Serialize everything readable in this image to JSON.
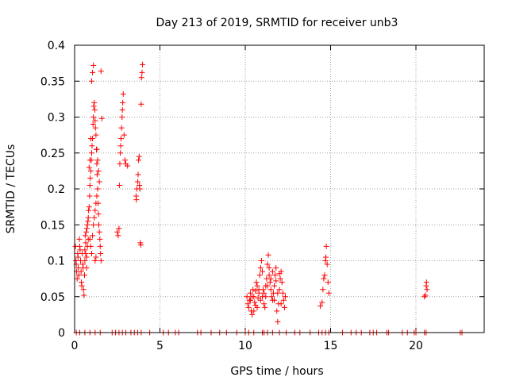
{
  "chart_data": {
    "type": "scatter",
    "title": "Day 213 of 2019, SRMTID for receiver unb3",
    "xlabel": "GPS time / hours",
    "ylabel": "SRMTID / TECUs",
    "xlim": [
      0,
      24
    ],
    "ylim": [
      0,
      0.4
    ],
    "grid": true,
    "xticks": [
      0,
      5,
      10,
      15,
      20
    ],
    "xtick_labels": [
      "0",
      "5",
      "10",
      "15",
      "20"
    ],
    "yticks": [
      0,
      0.05,
      0.1,
      0.15,
      0.2,
      0.25,
      0.3,
      0.35,
      0.4
    ],
    "ytick_labels": [
      "0",
      "0.05",
      "0.1",
      "0.15",
      "0.2",
      "0.25",
      "0.3",
      "0.35",
      "0.4"
    ],
    "marker": "+",
    "series_color": "#ff0000",
    "series": [
      {
        "name": "SRMTID",
        "points": [
          [
            0.05,
            0.12
          ],
          [
            0.08,
            0.1
          ],
          [
            0.1,
            0.095
          ],
          [
            0.12,
            0.085
          ],
          [
            0.15,
            0.075
          ],
          [
            0.18,
            0.11
          ],
          [
            0.2,
            0.105
          ],
          [
            0.22,
            0.09
          ],
          [
            0.25,
            0.08
          ],
          [
            0.28,
            0.13
          ],
          [
            0.3,
            0.12
          ],
          [
            0.32,
            0.115
          ],
          [
            0.35,
            0.1
          ],
          [
            0.38,
            0.085
          ],
          [
            0.4,
            0.07
          ],
          [
            0.42,
            0.065
          ],
          [
            0.45,
            0.11
          ],
          [
            0.48,
            0.095
          ],
          [
            0.5,
            0.09
          ],
          [
            0.52,
            0.06
          ],
          [
            0.55,
            0.052
          ],
          [
            0.58,
            0.08
          ],
          [
            0.6,
            0.115
          ],
          [
            0.62,
            0.135
          ],
          [
            0.65,
            0.125
          ],
          [
            0.68,
            0.14
          ],
          [
            0.7,
            0.105
          ],
          [
            0.72,
            0.145
          ],
          [
            0.75,
            0.15
          ],
          [
            0.78,
            0.155
          ],
          [
            0.8,
            0.16
          ],
          [
            0.82,
            0.17
          ],
          [
            0.85,
            0.175
          ],
          [
            0.88,
            0.19
          ],
          [
            0.9,
            0.205
          ],
          [
            0.92,
            0.215
          ],
          [
            0.95,
            0.225
          ],
          [
            0.98,
            0.24
          ],
          [
            1.0,
            0.25
          ],
          [
            1.02,
            0.26
          ],
          [
            1.05,
            0.27
          ],
          [
            1.08,
            0.29
          ],
          [
            1.1,
            0.3
          ],
          [
            1.12,
            0.315
          ],
          [
            1.15,
            0.32
          ],
          [
            1.18,
            0.31
          ],
          [
            1.2,
            0.295
          ],
          [
            1.22,
            0.285
          ],
          [
            1.25,
            0.275
          ],
          [
            1.28,
            0.255
          ],
          [
            1.3,
            0.235
          ],
          [
            1.32,
            0.22
          ],
          [
            1.35,
            0.2
          ],
          [
            1.38,
            0.18
          ],
          [
            1.4,
            0.165
          ],
          [
            1.42,
            0.15
          ],
          [
            1.45,
            0.14
          ],
          [
            1.48,
            0.13
          ],
          [
            1.5,
            0.12
          ],
          [
            1.52,
            0.11
          ],
          [
            1.55,
            0.1
          ],
          [
            0.9,
            0.13
          ],
          [
            0.95,
            0.12
          ],
          [
            1.0,
            0.11
          ],
          [
            1.05,
            0.135
          ],
          [
            1.1,
            0.15
          ],
          [
            1.15,
            0.16
          ],
          [
            1.2,
            0.17
          ],
          [
            1.25,
            0.18
          ],
          [
            1.3,
            0.19
          ],
          [
            1.0,
            0.35
          ],
          [
            1.05,
            0.362
          ],
          [
            1.1,
            0.372
          ],
          [
            1.55,
            0.364
          ],
          [
            0.85,
            0.23
          ],
          [
            0.9,
            0.24
          ],
          [
            0.95,
            0.27
          ],
          [
            1.3,
            0.255
          ],
          [
            1.35,
            0.24
          ],
          [
            1.4,
            0.225
          ],
          [
            1.45,
            0.21
          ],
          [
            1.6,
            0.298
          ],
          [
            0.6,
            0.1
          ],
          [
            0.65,
            0.11
          ],
          [
            0.7,
            0.09
          ],
          [
            0.75,
            0.12
          ],
          [
            0.8,
            0.13
          ],
          [
            1.2,
            0.1
          ],
          [
            1.25,
            0.105
          ],
          [
            2.5,
            0.14
          ],
          [
            2.55,
            0.135
          ],
          [
            2.6,
            0.145
          ],
          [
            2.62,
            0.205
          ],
          [
            2.65,
            0.235
          ],
          [
            2.68,
            0.25
          ],
          [
            2.7,
            0.26
          ],
          [
            2.72,
            0.27
          ],
          [
            2.75,
            0.285
          ],
          [
            2.78,
            0.3
          ],
          [
            2.8,
            0.31
          ],
          [
            2.82,
            0.32
          ],
          [
            2.85,
            0.332
          ],
          [
            2.9,
            0.275
          ],
          [
            2.95,
            0.24
          ],
          [
            3.0,
            0.235
          ],
          [
            3.1,
            0.232
          ],
          [
            3.6,
            0.19
          ],
          [
            3.62,
            0.185
          ],
          [
            3.65,
            0.2
          ],
          [
            3.7,
            0.21
          ],
          [
            3.72,
            0.22
          ],
          [
            3.75,
            0.24
          ],
          [
            3.78,
            0.245
          ],
          [
            3.8,
            0.205
          ],
          [
            3.82,
            0.2
          ],
          [
            3.85,
            0.125
          ],
          [
            3.88,
            0.122
          ],
          [
            3.9,
            0.318
          ],
          [
            3.92,
            0.355
          ],
          [
            3.95,
            0.362
          ],
          [
            3.98,
            0.373
          ],
          [
            10.1,
            0.05
          ],
          [
            10.15,
            0.04
          ],
          [
            10.2,
            0.035
          ],
          [
            10.25,
            0.045
          ],
          [
            10.3,
            0.055
          ],
          [
            10.35,
            0.03
          ],
          [
            10.4,
            0.025
          ],
          [
            10.45,
            0.06
          ],
          [
            10.5,
            0.05
          ],
          [
            10.55,
            0.042
          ],
          [
            10.6,
            0.038
          ],
          [
            10.65,
            0.07
          ],
          [
            10.7,
            0.065
          ],
          [
            10.75,
            0.048
          ],
          [
            10.8,
            0.055
          ],
          [
            10.85,
            0.08
          ],
          [
            10.9,
            0.09
          ],
          [
            10.95,
            0.1
          ],
          [
            11.0,
            0.085
          ],
          [
            11.05,
            0.06
          ],
          [
            11.1,
            0.04
          ],
          [
            11.15,
            0.035
          ],
          [
            11.2,
            0.05
          ],
          [
            11.25,
            0.075
          ],
          [
            11.3,
            0.095
          ],
          [
            11.35,
            0.108
          ],
          [
            11.4,
            0.09
          ],
          [
            11.45,
            0.07
          ],
          [
            11.5,
            0.06
          ],
          [
            11.55,
            0.05
          ],
          [
            11.6,
            0.045
          ],
          [
            11.65,
            0.055
          ],
          [
            11.7,
            0.065
          ],
          [
            11.75,
            0.08
          ],
          [
            11.8,
            0.072
          ],
          [
            11.85,
            0.03
          ],
          [
            11.9,
            0.015
          ],
          [
            11.95,
            0.04
          ],
          [
            12.0,
            0.06
          ],
          [
            12.05,
            0.075
          ],
          [
            12.1,
            0.085
          ],
          [
            12.15,
            0.07
          ],
          [
            12.2,
            0.055
          ],
          [
            12.25,
            0.045
          ],
          [
            12.3,
            0.035
          ],
          [
            12.35,
            0.05
          ],
          [
            10.3,
            0.045
          ],
          [
            10.5,
            0.03
          ],
          [
            10.7,
            0.035
          ],
          [
            10.9,
            0.045
          ],
          [
            11.1,
            0.055
          ],
          [
            11.3,
            0.065
          ],
          [
            11.5,
            0.075
          ],
          [
            11.7,
            0.045
          ],
          [
            11.9,
            0.055
          ],
          [
            12.1,
            0.04
          ],
          [
            10.4,
            0.05
          ],
          [
            10.6,
            0.058
          ],
          [
            10.8,
            0.06
          ],
          [
            11.0,
            0.05
          ],
          [
            11.2,
            0.065
          ],
          [
            11.4,
            0.08
          ],
          [
            11.6,
            0.085
          ],
          [
            11.8,
            0.09
          ],
          [
            12.0,
            0.082
          ],
          [
            14.4,
            0.037
          ],
          [
            14.5,
            0.042
          ],
          [
            14.55,
            0.06
          ],
          [
            14.6,
            0.075
          ],
          [
            14.65,
            0.08
          ],
          [
            14.7,
            0.1
          ],
          [
            14.72,
            0.105
          ],
          [
            14.75,
            0.12
          ],
          [
            14.8,
            0.095
          ],
          [
            14.85,
            0.07
          ],
          [
            14.9,
            0.055
          ],
          [
            20.5,
            0.05
          ],
          [
            20.55,
            0.052
          ],
          [
            20.6,
            0.065
          ],
          [
            20.62,
            0.07
          ],
          [
            20.65,
            0.06
          ],
          [
            0.1,
            0
          ],
          [
            0.3,
            0
          ],
          [
            0.6,
            0
          ],
          [
            0.9,
            0
          ],
          [
            1.2,
            0
          ],
          [
            1.5,
            0
          ],
          [
            2.2,
            0
          ],
          [
            2.4,
            0
          ],
          [
            2.6,
            0
          ],
          [
            2.8,
            0
          ],
          [
            3.0,
            0
          ],
          [
            3.3,
            0
          ],
          [
            3.5,
            0
          ],
          [
            3.7,
            0
          ],
          [
            3.9,
            0
          ],
          [
            4.4,
            0
          ],
          [
            5.2,
            0
          ],
          [
            5.5,
            0
          ],
          [
            5.9,
            0
          ],
          [
            6.1,
            0
          ],
          [
            7.2,
            0
          ],
          [
            7.4,
            0
          ],
          [
            8.0,
            0
          ],
          [
            8.5,
            0
          ],
          [
            8.9,
            0
          ],
          [
            9.5,
            0
          ],
          [
            10.0,
            0
          ],
          [
            10.2,
            0
          ],
          [
            10.5,
            0
          ],
          [
            11.0,
            0
          ],
          [
            11.1,
            0
          ],
          [
            11.3,
            0
          ],
          [
            11.6,
            0
          ],
          [
            12.0,
            0
          ],
          [
            12.4,
            0
          ],
          [
            12.9,
            0
          ],
          [
            13.2,
            0
          ],
          [
            13.8,
            0
          ],
          [
            14.3,
            0
          ],
          [
            14.5,
            0
          ],
          [
            14.7,
            0
          ],
          [
            14.9,
            0
          ],
          [
            15.7,
            0
          ],
          [
            16.2,
            0
          ],
          [
            16.5,
            0
          ],
          [
            16.8,
            0
          ],
          [
            17.3,
            0
          ],
          [
            17.5,
            0
          ],
          [
            17.7,
            0
          ],
          [
            18.3,
            0
          ],
          [
            18.4,
            0
          ],
          [
            19.2,
            0
          ],
          [
            19.5,
            0
          ],
          [
            19.9,
            0
          ],
          [
            20.0,
            0
          ],
          [
            20.5,
            0
          ],
          [
            20.6,
            0
          ],
          [
            22.6,
            0
          ],
          [
            22.7,
            0
          ]
        ]
      }
    ]
  }
}
